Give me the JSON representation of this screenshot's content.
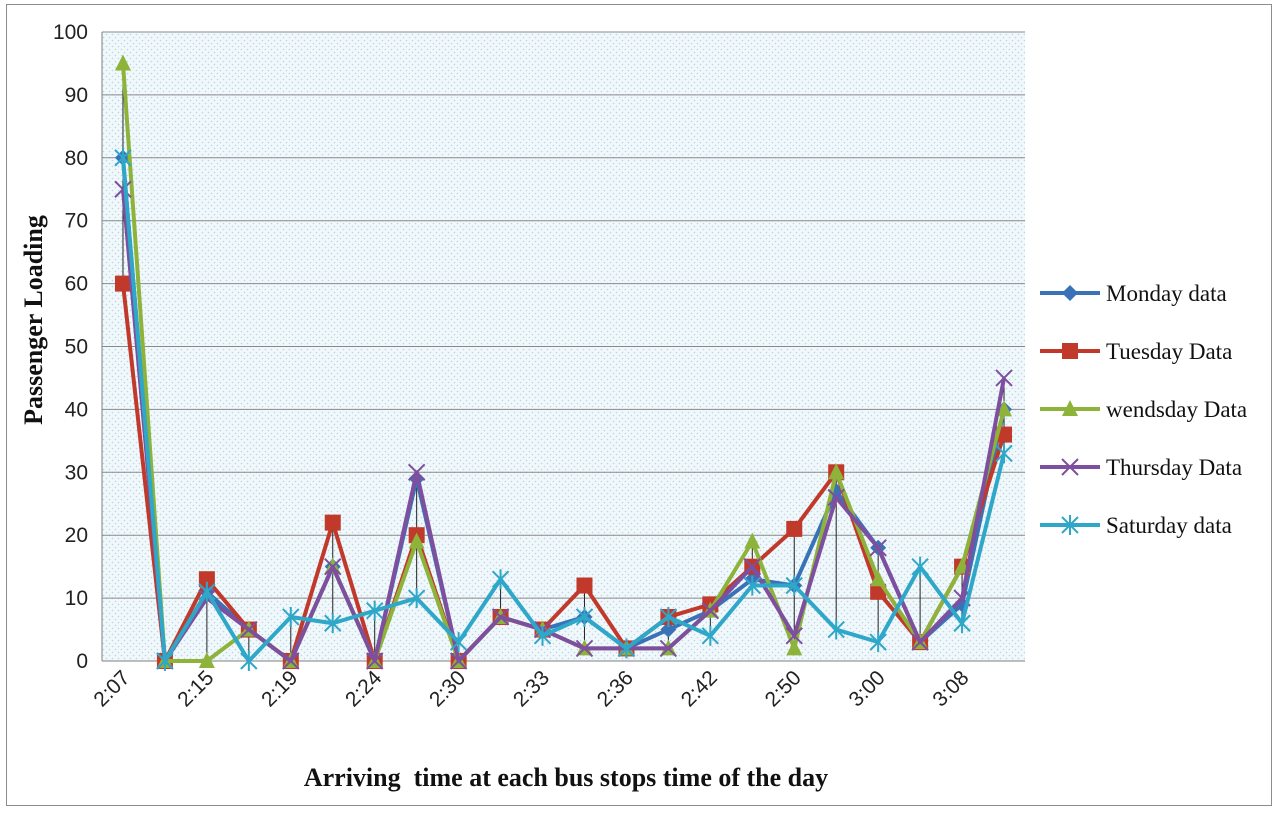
{
  "chart_data": {
    "type": "line",
    "title": "",
    "xlabel": "Arriving  time at each bus stops time of the day",
    "ylabel": "Passenger Loading",
    "ylim": [
      0,
      100
    ],
    "yticks": [
      0,
      10,
      20,
      30,
      40,
      50,
      60,
      70,
      80,
      90,
      100
    ],
    "grid": true,
    "legend": "right",
    "x_tick_labels": [
      "2:07",
      "2:15",
      "2:19",
      "2:24",
      "2:30",
      "2:33",
      "2:36",
      "2:42",
      "2:50",
      "3:00",
      "3:08"
    ],
    "x_tick_label_every": 2,
    "n_points": 22,
    "series": [
      {
        "name": "Monday data",
        "color": "#3a72b8",
        "marker": "diamond",
        "values": [
          80,
          0,
          11,
          5,
          0,
          15,
          0,
          29,
          0,
          7,
          5,
          7,
          2,
          5,
          8,
          13,
          12,
          27,
          18,
          3,
          9,
          40
        ]
      },
      {
        "name": "Tuesday Data",
        "color": "#c0392b",
        "marker": "square",
        "values": [
          60,
          0,
          13,
          5,
          0,
          22,
          0,
          20,
          0,
          7,
          5,
          12,
          2,
          7,
          9,
          15,
          21,
          30,
          11,
          3,
          15,
          36
        ]
      },
      {
        "name": "wendsday Data",
        "color": "#8db33b",
        "marker": "triangle",
        "values": [
          95,
          0,
          0,
          5,
          0,
          15,
          0,
          19,
          0,
          7,
          5,
          2,
          2,
          2,
          8,
          19,
          2,
          30,
          13,
          3,
          15,
          40
        ]
      },
      {
        "name": "Thursday Data",
        "color": "#7d4f9e",
        "marker": "x",
        "values": [
          75,
          0,
          10,
          5,
          0,
          15,
          0,
          30,
          0,
          7,
          5,
          2,
          2,
          2,
          8,
          15,
          4,
          26,
          18,
          3,
          10,
          45
        ]
      },
      {
        "name": "Saturday data",
        "color": "#2fa7c9",
        "marker": "asterisk",
        "values": [
          80,
          0,
          11,
          0,
          7,
          6,
          8,
          10,
          3,
          13,
          4,
          7,
          2,
          7,
          4,
          12,
          12,
          5,
          3,
          15,
          6,
          33
        ]
      }
    ]
  }
}
